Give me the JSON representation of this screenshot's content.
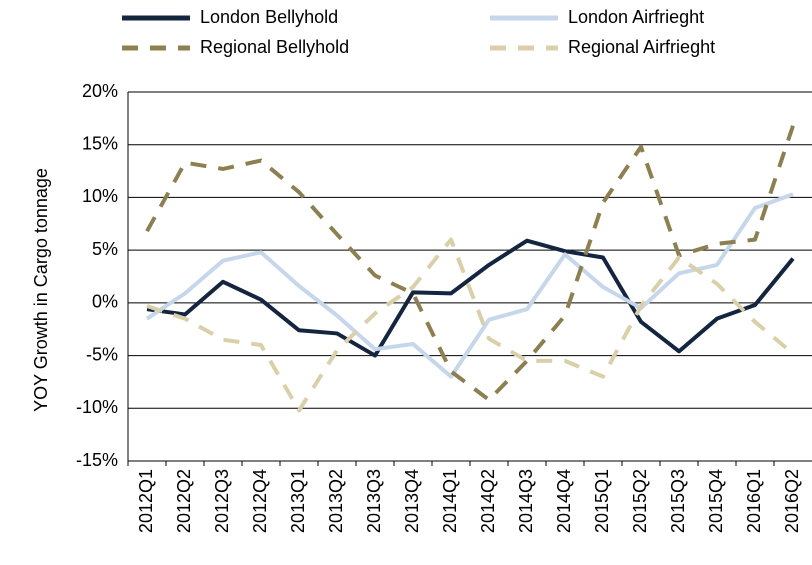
{
  "chart_data": {
    "type": "line",
    "y_label": "YOY Growth in Cargo tonnage",
    "categories": [
      "2012Q1",
      "2012Q2",
      "2012Q3",
      "2012Q4",
      "2013Q1",
      "2013Q2",
      "2013Q3",
      "2013Q4",
      "2014Q1",
      "2014Q2",
      "2014Q3",
      "2014Q4",
      "2015Q1",
      "2015Q2",
      "2015Q3",
      "2015Q4",
      "2016Q1",
      "2016Q2"
    ],
    "series": [
      {
        "name": "London Bellyhold",
        "color": "#14253f",
        "dashed": false,
        "values": [
          -0.6,
          -1.1,
          2.0,
          0.3,
          -2.6,
          -2.9,
          -5.0,
          1.0,
          0.9,
          3.6,
          5.9,
          4.9,
          4.3,
          -1.8,
          -4.6,
          -1.5,
          -0.2,
          4.2
        ]
      },
      {
        "name": "London Airfrieght",
        "color": "#c6d6eb",
        "dashed": false,
        "values": [
          -1.5,
          0.9,
          4.0,
          4.8,
          1.6,
          -1.2,
          -4.4,
          -3.9,
          -7.0,
          -1.6,
          -0.6,
          4.6,
          1.5,
          -0.5,
          2.8,
          3.6,
          9.0,
          10.3
        ]
      },
      {
        "name": "Regional Bellyhold",
        "color": "#8c7f50",
        "dashed": true,
        "values": [
          6.8,
          13.3,
          12.7,
          13.5,
          10.5,
          6.5,
          2.6,
          0.9,
          -6.5,
          -9.2,
          -5.5,
          -1.2,
          9.5,
          14.8,
          4.5,
          5.6,
          6.0,
          16.8
        ]
      },
      {
        "name": "Regional Airfrieght",
        "color": "#d9d0aa",
        "dashed": true,
        "values": [
          -0.3,
          -1.5,
          -3.5,
          -4.0,
          -10.2,
          -4.5,
          -1.0,
          1.5,
          6.0,
          -3.4,
          -5.5,
          -5.5,
          -7.0,
          -0.3,
          4.3,
          1.8,
          -1.8,
          -4.8
        ]
      }
    ],
    "ylim": [
      -15,
      20
    ],
    "yticks": [
      {
        "value": -15,
        "label": "-15%"
      },
      {
        "value": -10,
        "label": "-10%"
      },
      {
        "value": -5,
        "label": "-5%"
      },
      {
        "value": 0,
        "label": "0%"
      },
      {
        "value": 5,
        "label": "5%"
      },
      {
        "value": 10,
        "label": "10%"
      },
      {
        "value": 15,
        "label": "15%"
      },
      {
        "value": 20,
        "label": "20%"
      }
    ],
    "grid": true,
    "legend": "top"
  }
}
